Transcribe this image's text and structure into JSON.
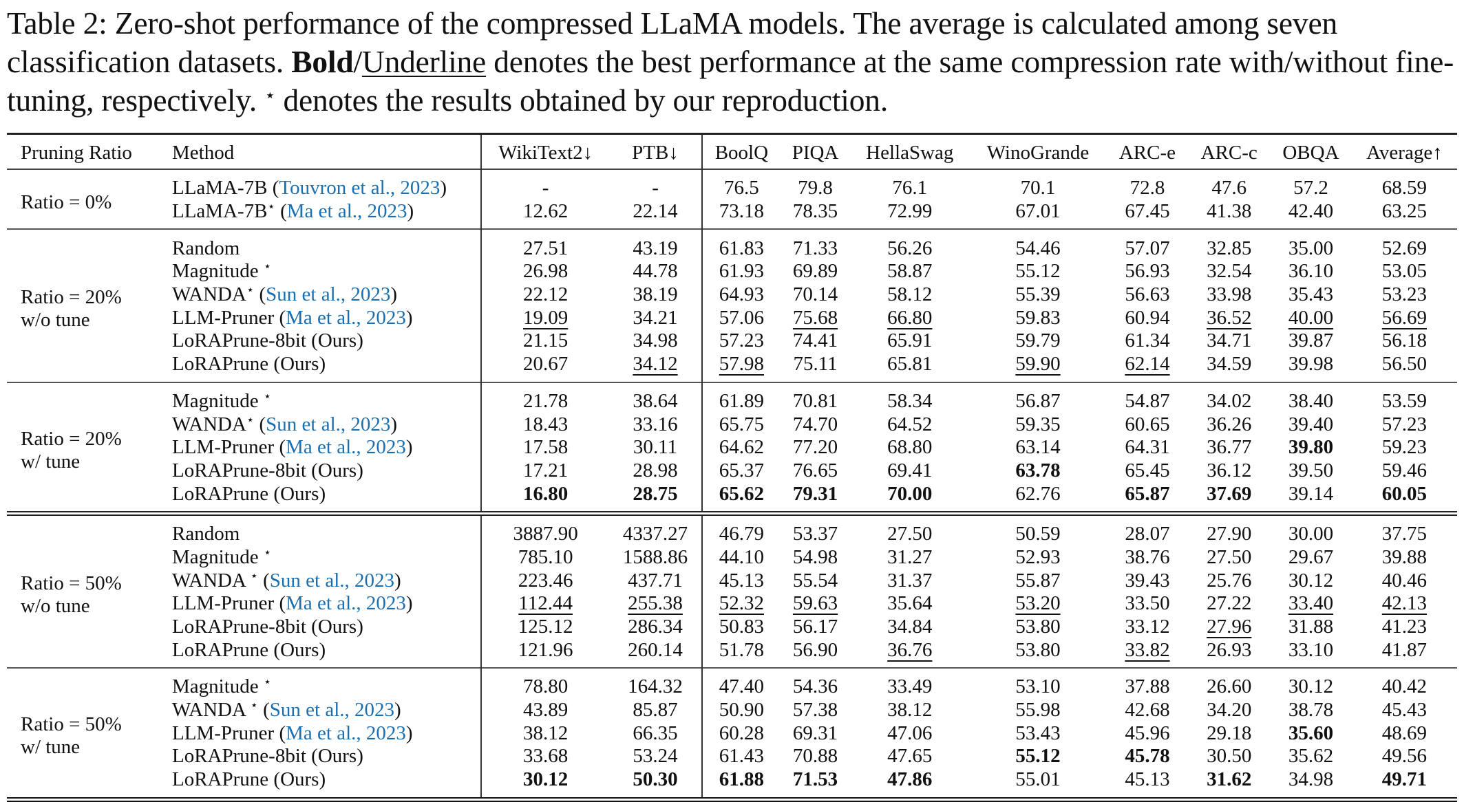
{
  "caption": {
    "label": "Table 2:",
    "text_1": " Zero-shot performance of the compressed LLaMA models. The average is calculated among seven classification datasets. ",
    "bold_word": "Bold",
    "slash": "/",
    "underline_word": "Underline",
    "text_2": " denotes the best performance at the same compression rate with/without fine-tuning, respectively. ",
    "star": "⋆",
    "text_3": " denotes the results obtained by our reproduction."
  },
  "table": {
    "headers": [
      "Pruning Ratio",
      "Method",
      "WikiText2↓",
      "PTB↓",
      "BoolQ",
      "PIQA",
      "HellaSwag",
      "WinoGrande",
      "ARC-e",
      "ARC-c",
      "OBQA",
      "Average↑"
    ],
    "groups": [
      {
        "ratio_line1": "Ratio = 0%",
        "ratio_line2": "",
        "rows": [
          {
            "method": "LLaMA-7B",
            "star": "",
            "cite": "Touvron et al., 2023",
            "values": [
              "-",
              "-",
              "76.5",
              "79.8",
              "76.1",
              "70.1",
              "72.8",
              "47.6",
              "57.2",
              "68.59"
            ],
            "bold": [],
            "underline": []
          },
          {
            "method": "LLaMA-7B",
            "star": "⋆",
            "cite": "Ma et al., 2023",
            "values": [
              "12.62",
              "22.14",
              "73.18",
              "78.35",
              "72.99",
              "67.01",
              "67.45",
              "41.38",
              "42.40",
              "63.25"
            ],
            "bold": [],
            "underline": []
          }
        ]
      },
      {
        "ratio_line1": "Ratio = 20%",
        "ratio_line2": "w/o tune",
        "rows": [
          {
            "method": "Random",
            "star": "",
            "cite": "",
            "values": [
              "27.51",
              "43.19",
              "61.83",
              "71.33",
              "56.26",
              "54.46",
              "57.07",
              "32.85",
              "35.00",
              "52.69"
            ],
            "bold": [],
            "underline": []
          },
          {
            "method": "Magnitude ",
            "star": "⋆",
            "cite": "",
            "values": [
              "26.98",
              "44.78",
              "61.93",
              "69.89",
              "58.87",
              "55.12",
              "56.93",
              "32.54",
              "36.10",
              "53.05"
            ],
            "bold": [],
            "underline": []
          },
          {
            "method": "WANDA",
            "star": "⋆",
            "cite": "Sun et al., 2023",
            "values": [
              "22.12",
              "38.19",
              "64.93",
              "70.14",
              "58.12",
              "55.39",
              "56.63",
              "33.98",
              "35.43",
              "53.23"
            ],
            "bold": [],
            "underline": []
          },
          {
            "method": "LLM-Pruner",
            "star": "",
            "cite": "Ma et al., 2023",
            "values": [
              "19.09",
              "34.21",
              "57.06",
              "75.68",
              "66.80",
              "59.83",
              "60.94",
              "36.52",
              "40.00",
              "56.69"
            ],
            "bold": [],
            "underline": [
              0,
              3,
              4,
              7,
              8,
              9
            ]
          },
          {
            "method": "LoRAPrune-8bit (Ours)",
            "star": "",
            "cite": "",
            "values": [
              "21.15",
              "34.98",
              "57.23",
              "74.41",
              "65.91",
              "59.79",
              "61.34",
              "34.71",
              "39.87",
              "56.18"
            ],
            "bold": [],
            "underline": []
          },
          {
            "method": "LoRAPrune (Ours)",
            "star": "",
            "cite": "",
            "values": [
              "20.67",
              "34.12",
              "57.98",
              "75.11",
              "65.81",
              "59.90",
              "62.14",
              "34.59",
              "39.98",
              "56.50"
            ],
            "bold": [],
            "underline": [
              1,
              2,
              5,
              6
            ]
          }
        ]
      },
      {
        "ratio_line1": "Ratio = 20%",
        "ratio_line2": "w/ tune",
        "rows": [
          {
            "method": "Magnitude ",
            "star": "⋆",
            "cite": "",
            "values": [
              "21.78",
              "38.64",
              "61.89",
              "70.81",
              "58.34",
              "56.87",
              "54.87",
              "34.02",
              "38.40",
              "53.59"
            ],
            "bold": [],
            "underline": []
          },
          {
            "method": "WANDA",
            "star": "⋆",
            "cite": "Sun et al., 2023",
            "values": [
              "18.43",
              "33.16",
              "65.75",
              "74.70",
              "64.52",
              "59.35",
              "60.65",
              "36.26",
              "39.40",
              "57.23"
            ],
            "bold": [],
            "underline": []
          },
          {
            "method": "LLM-Pruner",
            "star": "",
            "cite": "Ma et al., 2023",
            "values": [
              "17.58",
              "30.11",
              "64.62",
              "77.20",
              "68.80",
              "63.14",
              "64.31",
              "36.77",
              "39.80",
              "59.23"
            ],
            "bold": [
              8
            ],
            "underline": []
          },
          {
            "method": "LoRAPrune-8bit (Ours)",
            "star": "",
            "cite": "",
            "values": [
              "17.21",
              "28.98",
              "65.37",
              "76.65",
              "69.41",
              "63.78",
              "65.45",
              "36.12",
              "39.50",
              "59.46"
            ],
            "bold": [
              5
            ],
            "underline": []
          },
          {
            "method": "LoRAPrune (Ours)",
            "star": "",
            "cite": "",
            "values": [
              "16.80",
              "28.75",
              "65.62",
              "79.31",
              "70.00",
              "62.76",
              "65.87",
              "37.69",
              "39.14",
              "60.05"
            ],
            "bold": [
              0,
              1,
              2,
              3,
              4,
              6,
              7,
              9
            ],
            "underline": []
          }
        ]
      },
      {
        "ratio_line1": "Ratio = 50%",
        "ratio_line2": "w/o tune",
        "rows": [
          {
            "method": "Random",
            "star": "",
            "cite": "",
            "values": [
              "3887.90",
              "4337.27",
              "46.79",
              "53.37",
              "27.50",
              "50.59",
              "28.07",
              "27.90",
              "30.00",
              "37.75"
            ],
            "bold": [],
            "underline": []
          },
          {
            "method": "Magnitude ",
            "star": "⋆",
            "cite": "",
            "values": [
              "785.10",
              "1588.86",
              "44.10",
              "54.98",
              "31.27",
              "52.93",
              "38.76",
              "27.50",
              "29.67",
              "39.88"
            ],
            "bold": [],
            "underline": []
          },
          {
            "method": "WANDA ",
            "star": "⋆",
            "cite": "Sun et al., 2023",
            "values": [
              "223.46",
              "437.71",
              "45.13",
              "55.54",
              "31.37",
              "55.87",
              "39.43",
              "25.76",
              "30.12",
              "40.46"
            ],
            "bold": [],
            "underline": []
          },
          {
            "method": "LLM-Pruner",
            "star": "",
            "cite": "Ma et al., 2023",
            "values": [
              "112.44",
              "255.38",
              "52.32",
              "59.63",
              "35.64",
              "53.20",
              "33.50",
              "27.22",
              "33.40",
              "42.13"
            ],
            "bold": [],
            "underline": [
              0,
              1,
              2,
              3,
              5,
              8,
              9
            ]
          },
          {
            "method": "LoRAPrune-8bit (Ours)",
            "star": "",
            "cite": "",
            "values": [
              "125.12",
              "286.34",
              "50.83",
              "56.17",
              "34.84",
              "53.80",
              "33.12",
              "27.96",
              "31.88",
              "41.23"
            ],
            "bold": [],
            "underline": [
              7
            ]
          },
          {
            "method": "LoRAPrune (Ours)",
            "star": "",
            "cite": "",
            "values": [
              "121.96",
              "260.14",
              "51.78",
              "56.90",
              "36.76",
              "53.80",
              "33.82",
              "26.93",
              "33.10",
              "41.87"
            ],
            "bold": [],
            "underline": [
              4,
              6
            ]
          }
        ]
      },
      {
        "ratio_line1": "Ratio = 50%",
        "ratio_line2": "w/ tune",
        "rows": [
          {
            "method": "Magnitude ",
            "star": "⋆",
            "cite": "",
            "values": [
              "78.80",
              "164.32",
              "47.40",
              "54.36",
              "33.49",
              "53.10",
              "37.88",
              "26.60",
              "30.12",
              "40.42"
            ],
            "bold": [],
            "underline": []
          },
          {
            "method": "WANDA ",
            "star": "⋆",
            "cite": "Sun et al., 2023",
            "values": [
              "43.89",
              "85.87",
              "50.90",
              "57.38",
              "38.12",
              "55.98",
              "42.68",
              "34.20",
              "38.78",
              "45.43"
            ],
            "bold": [],
            "underline": []
          },
          {
            "method": "LLM-Pruner",
            "star": "",
            "cite": "Ma et al., 2023",
            "values": [
              "38.12",
              "66.35",
              "60.28",
              "69.31",
              "47.06",
              "53.43",
              "45.96",
              "29.18",
              "35.60",
              "48.69"
            ],
            "bold": [
              8
            ],
            "underline": []
          },
          {
            "method": "LoRAPrune-8bit (Ours)",
            "star": "",
            "cite": "",
            "values": [
              "33.68",
              "53.24",
              "61.43",
              "70.88",
              "47.65",
              "55.12",
              "45.78",
              "30.50",
              "35.62",
              "49.56"
            ],
            "bold": [
              5,
              6
            ],
            "underline": []
          },
          {
            "method": "LoRAPrune (Ours)",
            "star": "",
            "cite": "",
            "values": [
              "30.12",
              "50.30",
              "61.88",
              "71.53",
              "47.86",
              "55.01",
              "45.13",
              "31.62",
              "34.98",
              "49.71"
            ],
            "bold": [
              0,
              1,
              2,
              3,
              4,
              7,
              9
            ],
            "underline": []
          }
        ]
      }
    ]
  },
  "colors": {
    "citation": "#1a6fb0",
    "text": "#111111"
  }
}
